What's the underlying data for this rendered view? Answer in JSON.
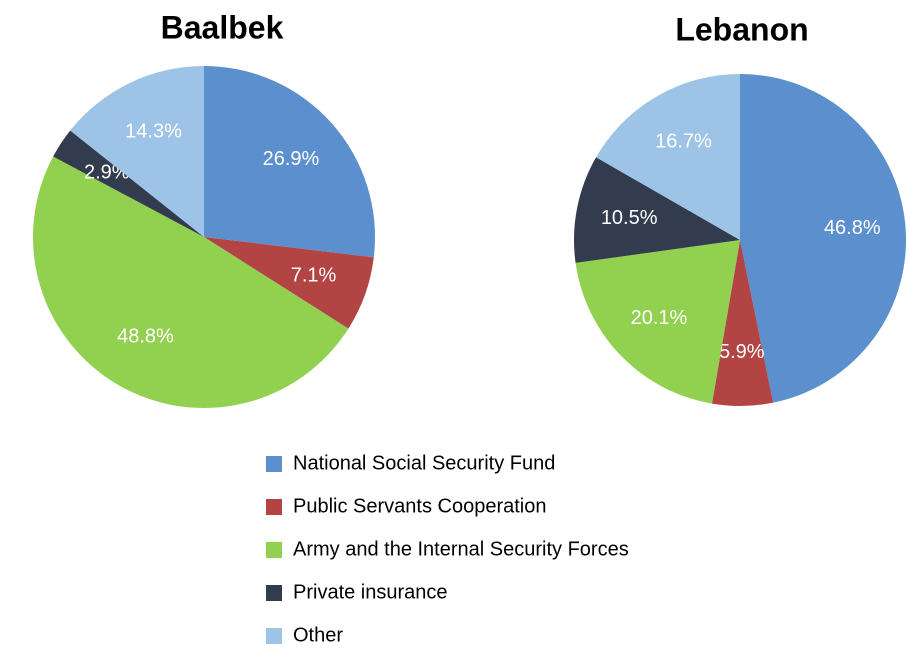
{
  "chart_data": [
    {
      "type": "pie",
      "title": "Baalbek",
      "values": [
        26.9,
        7.1,
        48.8,
        2.9,
        14.3
      ],
      "value_labels": [
        "26.9%",
        "7.1%",
        "48.8%",
        "2.9%",
        "14.3%"
      ]
    },
    {
      "type": "pie",
      "title": "Lebanon",
      "values": [
        46.8,
        5.9,
        20.1,
        10.5,
        16.7
      ],
      "value_labels": [
        "46.8%",
        "5.9%",
        "20.1%",
        "10.5%",
        "16.7%"
      ]
    }
  ],
  "legend": {
    "labels": [
      "National Social Security Fund",
      "Public Servants Cooperation",
      "Army and the Internal Security Forces",
      "Private insurance",
      "Other"
    ],
    "colors": [
      "#5b8fcd",
      "#b34444",
      "#92d050",
      "#323c4e",
      "#9dc3e6"
    ]
  }
}
